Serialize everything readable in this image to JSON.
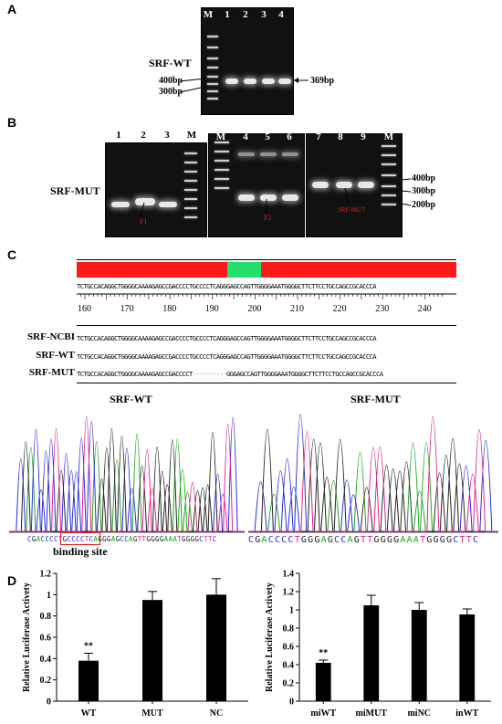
{
  "panels": {
    "a": "A",
    "b": "B",
    "c": "C",
    "d": "D"
  },
  "panel_a": {
    "lanes": [
      "M",
      "1",
      "2",
      "3",
      "4"
    ],
    "row_label": "SRF-WT",
    "size_left": [
      "400bp",
      "300bp"
    ],
    "size_right": "369bp"
  },
  "panel_b": {
    "row_label": "SRF-MUT",
    "gel1_lanes": [
      "1",
      "2",
      "3",
      "M"
    ],
    "gel2_lanes": [
      "M",
      "4",
      "5",
      "6"
    ],
    "gel3_lanes": [
      "7",
      "8",
      "9",
      "M"
    ],
    "sizes": [
      "400bp",
      "300bp",
      "200bp"
    ],
    "band_annotations": [
      "F1",
      "F2",
      "SRF-MUT"
    ]
  },
  "panel_c": {
    "ruler_ticks": [
      "160",
      "170",
      "180",
      "190",
      "200",
      "210",
      "220",
      "230",
      "240"
    ],
    "ref_seq": "TCTGCCACAGGCTGGGGCAAAAGAGCCGACCCCTGCCCCTCAGGGAGCCAGTTGGGGAAATGGGGCTTCTTCCTGCCAGCCGCACCCA",
    "rows": [
      {
        "label": "SRF-NCBI",
        "seq": "TCTGCCACAGGCTGGGGCAAAAGAGCCGACCCCTGCCCCTCAGGGAGCCAGTTGGGGAAATGGGGCTTCTTCCTGCCAGCCGCACCCA"
      },
      {
        "label": "SRF-WT",
        "seq": "TCTGCCACAGGCTGGGGCAAAAGAGCCGACCCCTGCCCCTCAGGGAGCCAGTTGGGGAAATGGGGCTTCTTCCTGCCAGCCGCACCCA"
      },
      {
        "label": "SRF-MUT",
        "seq": "TCTGCCACAGGCTGGGGCAAAAGAGCCGACCCCT----------GGGAGCCAGTTGGGGAAATGGGGCTTCTTCCTGCCAGCCGCACCCA"
      }
    ],
    "chrom_wt_title": "SRF-WT",
    "chrom_mut_title": "SRF-MUT",
    "chrom_wt_seq": "CGACCCCTGCCCCTCAGGGAGCCAGTTGGGGAAATGGGGCTTC",
    "chrom_mut_seq": "CGACCCCTGGGAGCCAGTTGGGGAAATGGGGCTTC",
    "binding_site": "binding site",
    "colors": {
      "A": "#1aa51a",
      "C": "#2a2ad8",
      "G": "#222222",
      "T": "#e0208a",
      "bar_red": "#ff1a1a",
      "bar_green": "#22e06a"
    }
  },
  "panel_d_subtitle_sig": "**",
  "chart_data": [
    {
      "type": "bar",
      "categories": [
        "WT",
        "MUT",
        "NC"
      ],
      "values": [
        0.38,
        0.95,
        1.0
      ],
      "errors": [
        0.07,
        0.08,
        0.15
      ],
      "significance": [
        "**",
        "",
        ""
      ],
      "ylabel": "Relative Luciferase Activety",
      "ylim": [
        0,
        1.2
      ],
      "yticks": [
        "0",
        "0.2",
        "0.4",
        "0.6",
        "0.8",
        "1",
        "1.2"
      ]
    },
    {
      "type": "bar",
      "categories": [
        "miWT",
        "miMUT",
        "miNC",
        "inWT"
      ],
      "values": [
        0.42,
        1.05,
        1.0,
        0.95
      ],
      "errors": [
        0.03,
        0.11,
        0.08,
        0.06
      ],
      "significance": [
        "**",
        "",
        "",
        ""
      ],
      "ylabel": "Relative Luciferase Activety",
      "ylim": [
        0,
        1.4
      ],
      "yticks": [
        "0",
        "0.2",
        "0.4",
        "0.6",
        "0.8",
        "1",
        "1.2",
        "1.4"
      ]
    }
  ]
}
